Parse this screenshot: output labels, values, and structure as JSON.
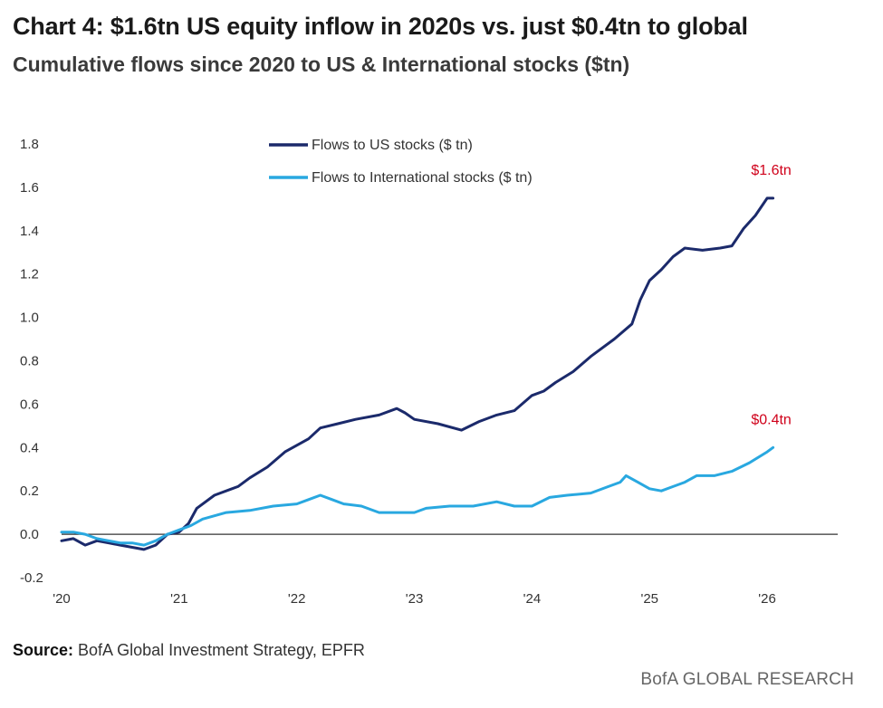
{
  "chart_data": {
    "type": "line",
    "title": "Chart 4: $1.6tn US equity inflow in 2020s vs. just $0.4tn to global",
    "subtitle": "Cumulative flows since 2020 to US & International stocks ($tn)",
    "xlabel": "",
    "ylabel": "",
    "xlim": [
      2020,
      2026.6
    ],
    "ylim": [
      -0.2,
      1.8
    ],
    "yticks": [
      -0.2,
      0.0,
      0.2,
      0.4,
      0.6,
      0.8,
      1.0,
      1.2,
      1.4,
      1.6,
      1.8
    ],
    "ytick_labels": [
      "-0.2",
      "0.0",
      "0.2",
      "0.4",
      "0.6",
      "0.8",
      "1.0",
      "1.2",
      "1.4",
      "1.6",
      "1.8"
    ],
    "xticks": [
      2020,
      2021,
      2022,
      2023,
      2024,
      2025,
      2026
    ],
    "xtick_labels": [
      "'20",
      "'21",
      "'22",
      "'23",
      "'24",
      "'25",
      "'26"
    ],
    "grid": false,
    "legend_position": "top-center",
    "series": [
      {
        "name": "Flows to US stocks ($ tn)",
        "color": "#1b2a6b",
        "x": [
          2020.0,
          2020.1,
          2020.2,
          2020.3,
          2020.4,
          2020.5,
          2020.6,
          2020.7,
          2020.8,
          2020.9,
          2021.0,
          2021.08,
          2021.15,
          2021.3,
          2021.5,
          2021.6,
          2021.75,
          2021.9,
          2022.1,
          2022.2,
          2022.35,
          2022.5,
          2022.7,
          2022.85,
          2022.92,
          2023.0,
          2023.2,
          2023.4,
          2023.55,
          2023.7,
          2023.85,
          2024.0,
          2024.1,
          2024.2,
          2024.35,
          2024.5,
          2024.7,
          2024.85,
          2024.92,
          2025.0,
          2025.1,
          2025.2,
          2025.3,
          2025.45,
          2025.6,
          2025.7,
          2025.8,
          2025.9,
          2026.0,
          2026.05
        ],
        "values": [
          -0.03,
          -0.02,
          -0.05,
          -0.03,
          -0.04,
          -0.05,
          -0.06,
          -0.07,
          -0.05,
          0.0,
          0.01,
          0.05,
          0.12,
          0.18,
          0.22,
          0.26,
          0.31,
          0.38,
          0.44,
          0.49,
          0.51,
          0.53,
          0.55,
          0.58,
          0.56,
          0.53,
          0.51,
          0.48,
          0.52,
          0.55,
          0.57,
          0.64,
          0.66,
          0.7,
          0.75,
          0.82,
          0.9,
          0.97,
          1.08,
          1.17,
          1.22,
          1.28,
          1.32,
          1.31,
          1.32,
          1.33,
          1.41,
          1.47,
          1.55,
          1.55
        ]
      },
      {
        "name": "Flows to International stocks ($ tn)",
        "color": "#29a8e0",
        "x": [
          2020.0,
          2020.1,
          2020.2,
          2020.3,
          2020.4,
          2020.5,
          2020.6,
          2020.7,
          2020.8,
          2020.9,
          2021.0,
          2021.1,
          2021.2,
          2021.4,
          2021.6,
          2021.8,
          2022.0,
          2022.1,
          2022.2,
          2022.3,
          2022.4,
          2022.55,
          2022.7,
          2022.85,
          2023.0,
          2023.1,
          2023.3,
          2023.5,
          2023.7,
          2023.85,
          2024.0,
          2024.15,
          2024.3,
          2024.5,
          2024.65,
          2024.75,
          2024.8,
          2024.9,
          2025.0,
          2025.1,
          2025.2,
          2025.3,
          2025.4,
          2025.55,
          2025.7,
          2025.85,
          2026.0,
          2026.05
        ],
        "values": [
          0.01,
          0.01,
          0.0,
          -0.02,
          -0.03,
          -0.04,
          -0.04,
          -0.05,
          -0.03,
          0.0,
          0.02,
          0.04,
          0.07,
          0.1,
          0.11,
          0.13,
          0.14,
          0.16,
          0.18,
          0.16,
          0.14,
          0.13,
          0.1,
          0.1,
          0.1,
          0.12,
          0.13,
          0.13,
          0.15,
          0.13,
          0.13,
          0.17,
          0.18,
          0.19,
          0.22,
          0.24,
          0.27,
          0.24,
          0.21,
          0.2,
          0.22,
          0.24,
          0.27,
          0.27,
          0.29,
          0.33,
          0.38,
          0.4
        ]
      }
    ],
    "annotations": [
      {
        "text": "$1.6tn",
        "series": 0,
        "color": "#d0021b"
      },
      {
        "text": "$0.4tn",
        "series": 1,
        "color": "#d0021b"
      }
    ]
  },
  "footer": {
    "source_label": "Source:",
    "source_text": " BofA Global Investment Strategy, EPFR",
    "brand": "BofA GLOBAL RESEARCH"
  }
}
